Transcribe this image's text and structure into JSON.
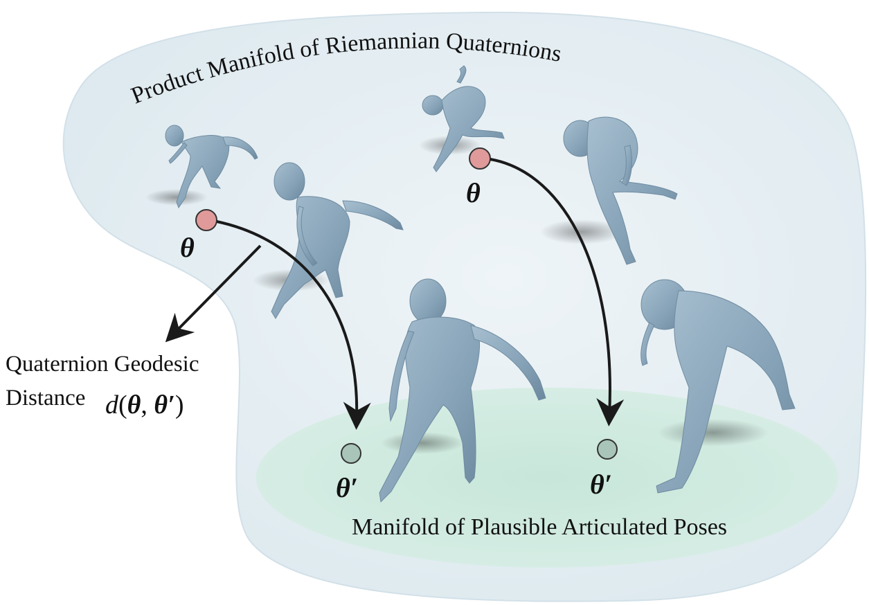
{
  "manifolds": {
    "outer_label": "Product Manifold of Riemannian Quaternions",
    "inner_label": "Manifold of Plausible Articulated Poses"
  },
  "distance": {
    "line1": "Quaternion Geodesic",
    "line2": "Distance",
    "formula_d": "d",
    "formula_open": "(",
    "formula_theta": "θ",
    "formula_comma": ",",
    "formula_theta_prime": "θ′",
    "formula_close": ")"
  },
  "points": {
    "source_label": "θ",
    "target_label": "θ′"
  },
  "colors": {
    "outer_manifold": "#e6eff3",
    "inner_manifold": "#cfeadf",
    "source_point": "#e09a9a",
    "target_point": "#a9c5b9",
    "body": "#8aa6bb",
    "arrow": "#1a1a1a"
  },
  "icons": [
    "human-pose-figure",
    "source-point-marker",
    "target-point-marker",
    "geodesic-arrow"
  ]
}
